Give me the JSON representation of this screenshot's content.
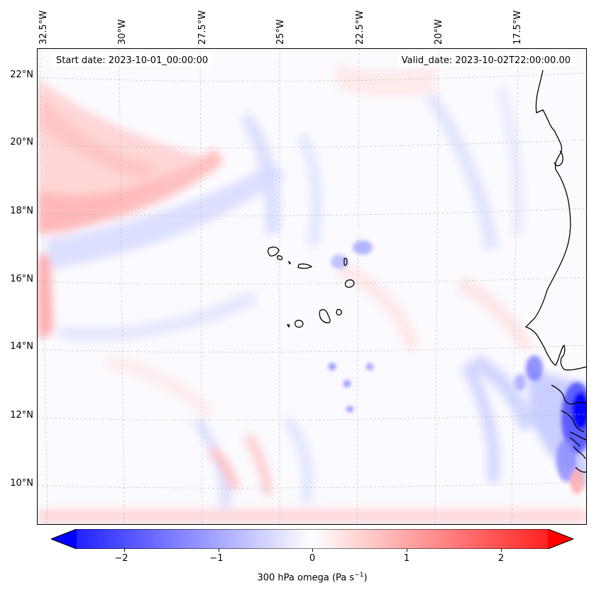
{
  "map": {
    "start_date": "Start date: 2023-10-01_00:00:00",
    "valid_date": "Valid_date: 2023-10-02T22:00:00.00",
    "lon_labels": [
      "32.5°W",
      "30°W",
      "27.5°W",
      "25°W",
      "22.5°W",
      "20°W",
      "17.5°W"
    ],
    "lat_labels": [
      "22°N",
      "20°N",
      "18°N",
      "16°N",
      "14°N",
      "12°N",
      "10°N"
    ],
    "field": "300 hPa omega"
  },
  "colorbar": {
    "label_main": "300 hPa omega (Pa s",
    "label_exp": "−1",
    "label_end": ")",
    "ticks": [
      "−2",
      "−1",
      "0",
      "1",
      "2"
    ],
    "tick_values": [
      -2,
      -1,
      0,
      1,
      2
    ],
    "vmin": -2.5,
    "vmax": 2.5,
    "extend": "both",
    "cmap": "bwr",
    "neg_color": "#0000ff",
    "mid_color": "#ffffff",
    "pos_color": "#ff0000"
  }
}
